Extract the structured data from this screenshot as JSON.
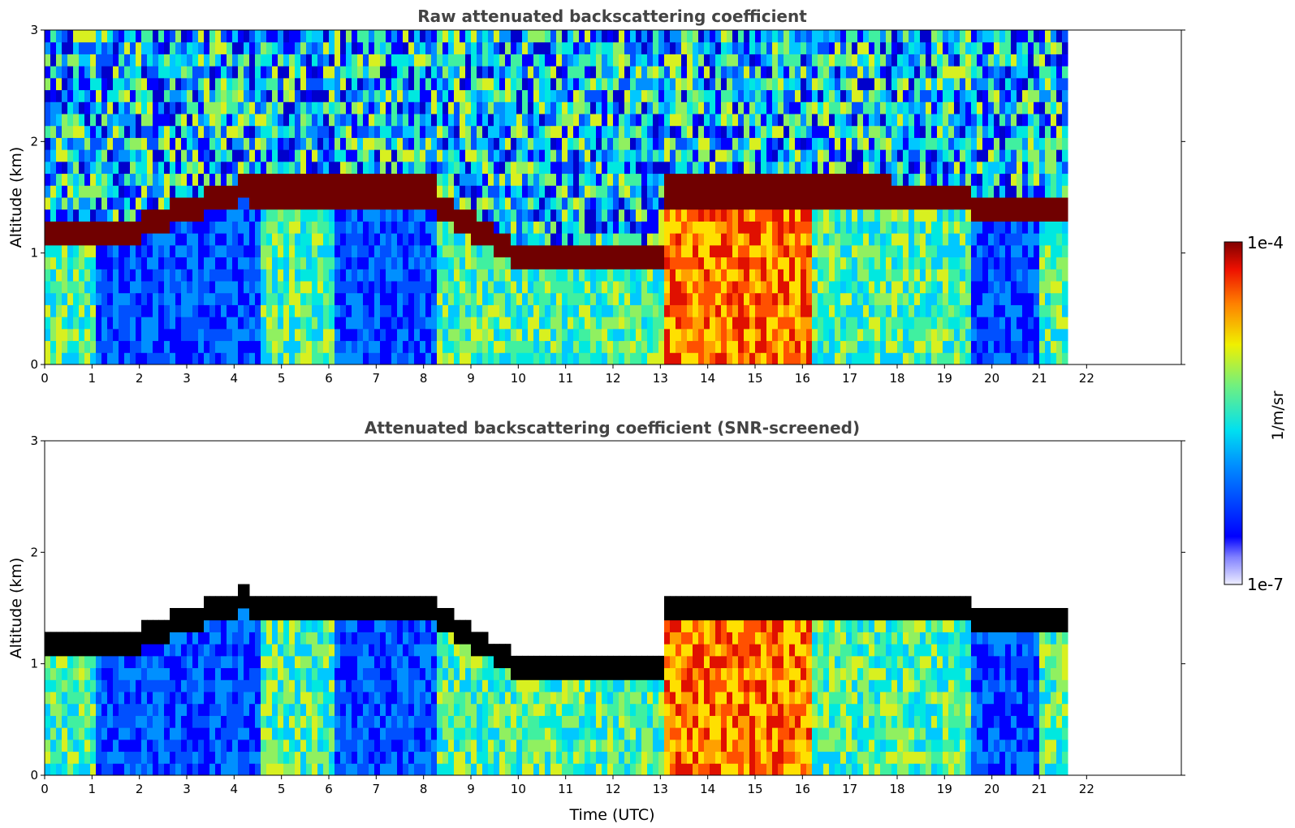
{
  "chart_data": [
    {
      "type": "heatmap",
      "title": "Raw attenuated backscattering coefficient",
      "xlabel": "",
      "ylabel": "Altitude (km)",
      "xlim": [
        0,
        24
      ],
      "ylim": [
        0,
        3
      ],
      "xticks": [
        "0",
        "1",
        "2",
        "3",
        "4",
        "5",
        "6",
        "7",
        "8",
        "9",
        "10",
        "11",
        "12",
        "13",
        "14",
        "15",
        "16",
        "17",
        "18",
        "19",
        "20",
        "21",
        "22"
      ],
      "yticks": [
        "0",
        "1",
        "2",
        "3"
      ],
      "data_end_hour": 21.6,
      "cloud_layers": [
        {
          "start": 0.0,
          "end": 0.9,
          "altitude": 1.15
        },
        {
          "start": 2.0,
          "end": 4.3,
          "altitude": 1.2,
          "altitude_end": 1.55
        },
        {
          "start": 8.4,
          "end": 9.6,
          "altitude": 1.4,
          "altitude_end": 0.95
        },
        {
          "start": 13.0,
          "end": 16.5,
          "altitude": 1.5
        },
        {
          "start": 16.3,
          "end": 17.8,
          "altitude": 1.5
        },
        {
          "start": 19.2,
          "end": 19.6,
          "altitude": 1.45
        },
        {
          "start": 21.3,
          "end": 21.6,
          "altitude": 1.38
        }
      ]
    },
    {
      "type": "heatmap",
      "title": "Attenuated backscattering coefficient (SNR-screened)",
      "xlabel": "Time (UTC)",
      "ylabel": "Altitude (km)",
      "xlim": [
        0,
        24
      ],
      "ylim": [
        0,
        3
      ],
      "xticks": [
        "0",
        "1",
        "2",
        "3",
        "4",
        "5",
        "6",
        "7",
        "8",
        "9",
        "10",
        "11",
        "12",
        "13",
        "14",
        "15",
        "16",
        "17",
        "18",
        "19",
        "20",
        "21",
        "22"
      ],
      "yticks": [
        "0",
        "1",
        "2",
        "3"
      ],
      "data_end_hour": 21.6
    }
  ],
  "colorbar": {
    "label": "1/m/sr",
    "max_label": "1e-4",
    "min_label": "1e-7",
    "colormap": "jet"
  }
}
